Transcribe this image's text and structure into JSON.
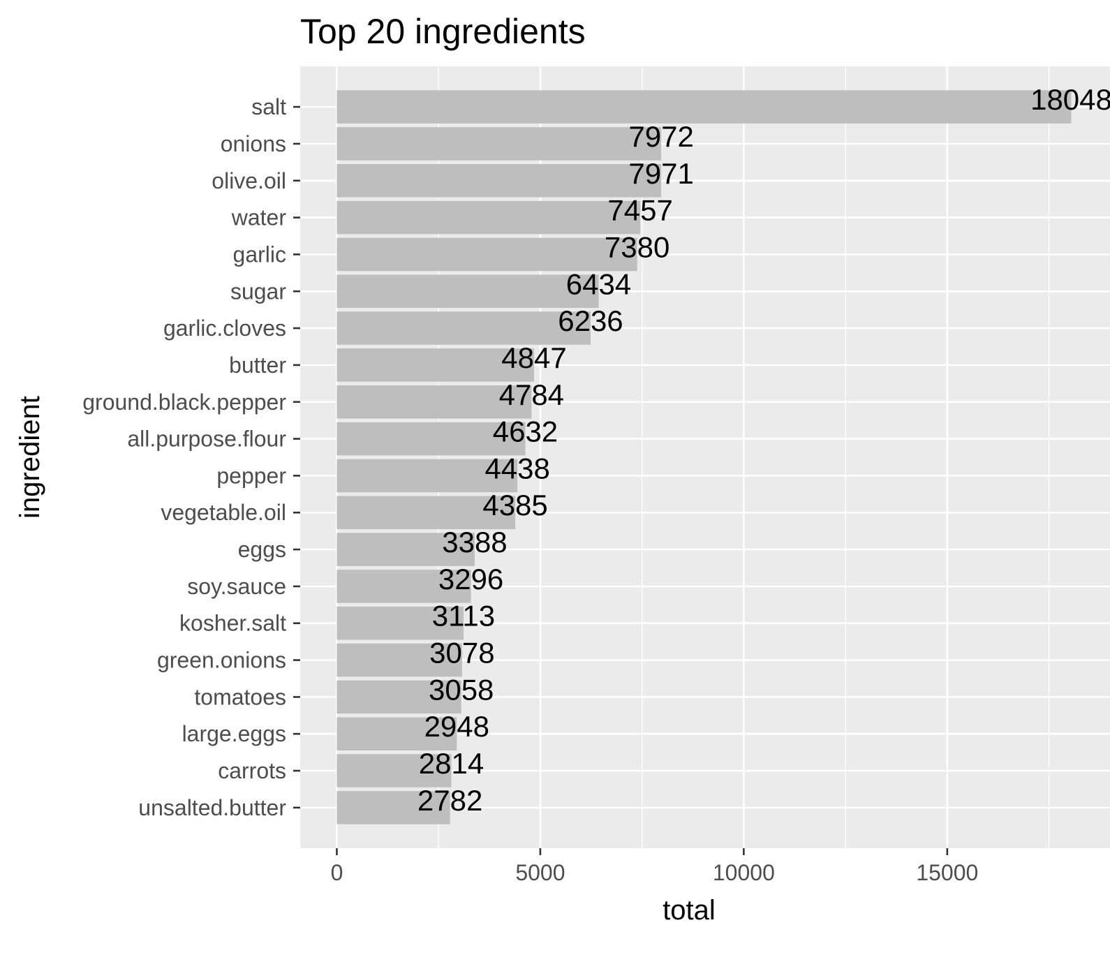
{
  "chart_data": {
    "type": "bar",
    "orientation": "horizontal",
    "title": "Top 20 ingredients",
    "xlabel": "total",
    "ylabel": "ingredient",
    "xlim": [
      -900,
      19000
    ],
    "x_ticks": [
      0,
      5000,
      10000,
      15000
    ],
    "x_minor_ticks": [
      2500,
      7500,
      12500,
      17500
    ],
    "grid": true,
    "categories": [
      "salt",
      "onions",
      "olive.oil",
      "water",
      "garlic",
      "sugar",
      "garlic.cloves",
      "butter",
      "ground.black.pepper",
      "all.purpose.flour",
      "pepper",
      "vegetable.oil",
      "eggs",
      "soy.sauce",
      "kosher.salt",
      "green.onions",
      "tomatoes",
      "large.eggs",
      "carrots",
      "unsalted.butter"
    ],
    "values": [
      18048,
      7972,
      7971,
      7457,
      7380,
      6434,
      6236,
      4847,
      4784,
      4632,
      4438,
      4385,
      3388,
      3296,
      3113,
      3078,
      3058,
      2948,
      2814,
      2782
    ],
    "colors": {
      "panel": "#ebebeb",
      "grid": "#ffffff",
      "bar": "#bebebe",
      "tick": "#333333",
      "tick_label": "#4d4d4d",
      "text": "#000000"
    }
  }
}
